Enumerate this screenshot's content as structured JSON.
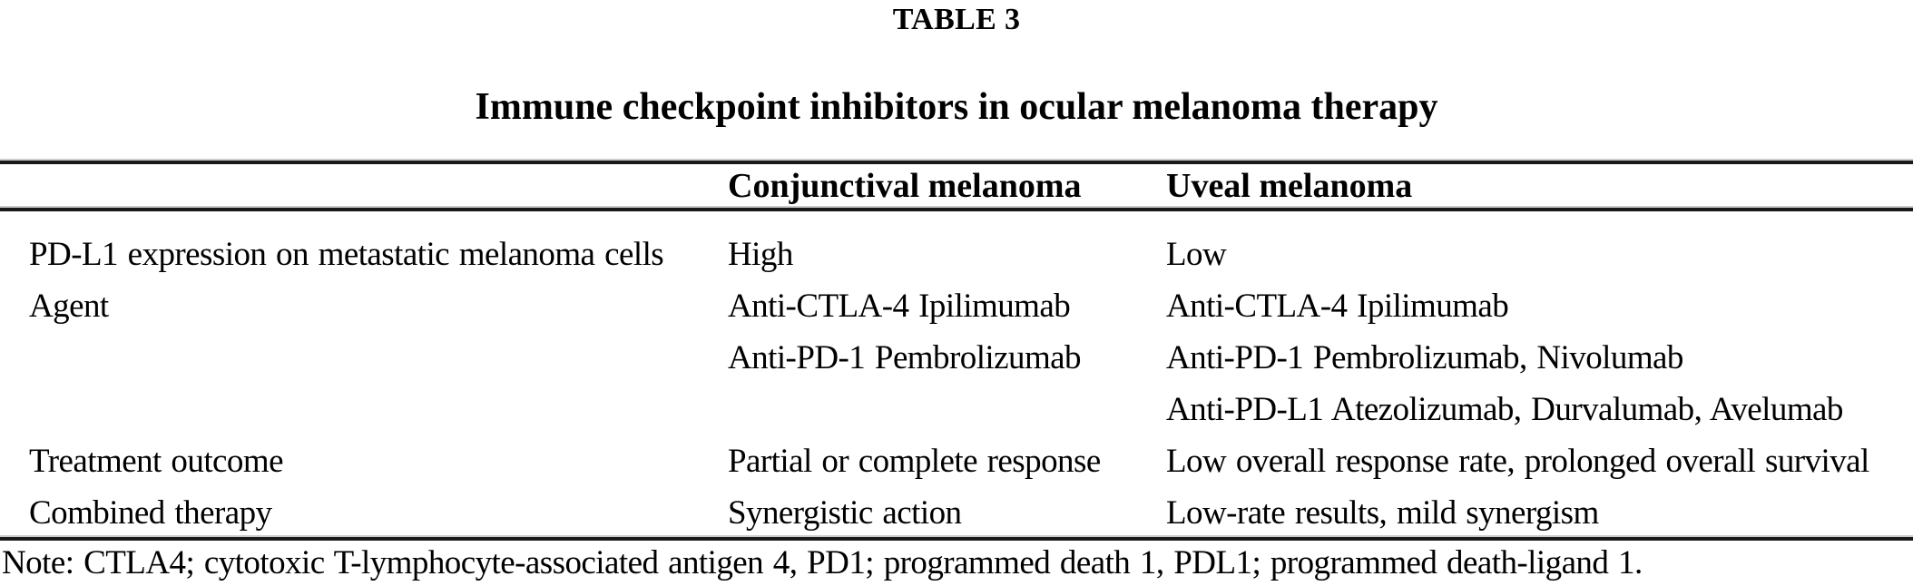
{
  "table_label": "TABLE 3",
  "title": "Immune checkpoint inhibitors in ocular melanoma therapy",
  "columns": {
    "row_header": "",
    "conjunctival": "Conjunctival melanoma",
    "uveal": "Uveal melanoma"
  },
  "rows": [
    {
      "label": "PD-L1 expression on metastatic melanoma cells",
      "conjunctival": "High",
      "uveal": "Low"
    },
    {
      "label": "Agent",
      "conjunctival": "Anti-CTLA-4 Ipilimumab",
      "uveal": "Anti-CTLA-4 Ipilimumab"
    },
    {
      "label": "",
      "conjunctival": "Anti-PD-1 Pembrolizumab",
      "uveal": "Anti-PD-1 Pembrolizumab, Nivolumab"
    },
    {
      "label": "",
      "conjunctival": "",
      "uveal": "Anti-PD-L1 Atezolizumab, Durvalumab, Avelumab"
    },
    {
      "label": "Treatment outcome",
      "conjunctival": "Partial or complete response",
      "uveal": "Low overall response rate, prolonged overall survival"
    },
    {
      "label": "Combined therapy",
      "conjunctival": "Synergistic action",
      "uveal": "Low-rate results, mild synergism"
    }
  ],
  "note": "Note: CTLA4; cytotoxic T-lymphocyte-associated antigen 4, PD1; programmed death 1, PDL1; programmed death-ligand 1.",
  "colors": {
    "text": "#000000",
    "rule": "#1a1a1a",
    "background": "#ffffff"
  }
}
